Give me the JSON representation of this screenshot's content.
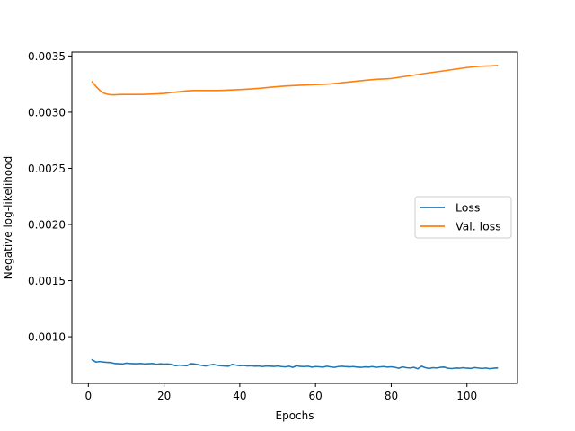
{
  "chart_data": {
    "type": "line",
    "title": "",
    "xlabel": "Epochs",
    "ylabel": "Negative log-likelihood",
    "xlim": [
      -4.35,
      113.35
    ],
    "ylim": [
      0.000585,
      0.003535
    ],
    "xticks": [
      0,
      20,
      40,
      60,
      80,
      100
    ],
    "yticks": [
      0.001,
      0.0015,
      0.002,
      0.0025,
      0.003,
      0.0035
    ],
    "ytick_labels": [
      "0.0010",
      "0.0015",
      "0.0020",
      "0.0025",
      "0.0030",
      "0.0035"
    ],
    "grid": false,
    "legend_position": "center-right",
    "series": [
      {
        "name": "Loss",
        "color": "#1f77b4",
        "x": [
          1,
          2,
          3,
          4,
          5,
          6,
          7,
          8,
          9,
          10,
          11,
          12,
          13,
          14,
          15,
          16,
          17,
          18,
          19,
          20,
          21,
          22,
          23,
          24,
          25,
          26,
          27,
          28,
          29,
          30,
          31,
          32,
          33,
          34,
          35,
          36,
          37,
          38,
          39,
          40,
          41,
          42,
          43,
          44,
          45,
          46,
          47,
          48,
          49,
          50,
          51,
          52,
          53,
          54,
          55,
          56,
          57,
          58,
          59,
          60,
          61,
          62,
          63,
          64,
          65,
          66,
          67,
          68,
          69,
          70,
          71,
          72,
          73,
          74,
          75,
          76,
          77,
          78,
          79,
          80,
          81,
          82,
          83,
          84,
          85,
          86,
          87,
          88,
          89,
          90,
          91,
          92,
          93,
          94,
          95,
          96,
          97,
          98,
          99,
          100,
          101,
          102,
          103,
          104,
          105,
          106,
          107,
          108
        ],
        "y": [
          0.000795,
          0.000775,
          0.00078,
          0.000775,
          0.000772,
          0.00077,
          0.000762,
          0.00076,
          0.000758,
          0.000765,
          0.000762,
          0.00076,
          0.00076,
          0.000762,
          0.000758,
          0.00076,
          0.000762,
          0.000755,
          0.00076,
          0.000757,
          0.000758,
          0.000755,
          0.000742,
          0.000748,
          0.000745,
          0.000742,
          0.00076,
          0.000758,
          0.000752,
          0.000745,
          0.00074,
          0.000748,
          0.000755,
          0.000747,
          0.000742,
          0.00074,
          0.000738,
          0.000755,
          0.000748,
          0.000742,
          0.000745,
          0.00074,
          0.000742,
          0.000738,
          0.00074,
          0.000735,
          0.00074,
          0.000738,
          0.000736,
          0.00074,
          0.000735,
          0.000732,
          0.000738,
          0.000728,
          0.000742,
          0.000736,
          0.000735,
          0.000738,
          0.00073,
          0.000735,
          0.000733,
          0.00073,
          0.000738,
          0.000732,
          0.000728,
          0.000735,
          0.000738,
          0.000734,
          0.000732,
          0.000735,
          0.00073,
          0.000728,
          0.000732,
          0.00073,
          0.000735,
          0.000728,
          0.000732,
          0.000735,
          0.00073,
          0.000733,
          0.000728,
          0.00072,
          0.000732,
          0.000725,
          0.000722,
          0.000728,
          0.000715,
          0.000738,
          0.000725,
          0.000718,
          0.000725,
          0.000722,
          0.000728,
          0.00073,
          0.00072,
          0.000717,
          0.000722,
          0.00072,
          0.000725,
          0.00072,
          0.000718,
          0.000726,
          0.000722,
          0.000718,
          0.000722,
          0.000716,
          0.00072,
          0.000722
        ]
      },
      {
        "name": "Val. loss",
        "color": "#ff7f0e",
        "x": [
          1,
          2,
          3,
          4,
          5,
          6,
          7,
          8,
          9,
          10,
          12,
          14,
          16,
          18,
          20,
          22,
          24,
          26,
          28,
          30,
          32,
          34,
          36,
          38,
          40,
          42,
          44,
          46,
          48,
          50,
          52,
          54,
          56,
          58,
          60,
          62,
          64,
          66,
          68,
          70,
          72,
          74,
          76,
          78,
          80,
          82,
          84,
          86,
          88,
          90,
          92,
          94,
          96,
          98,
          100,
          102,
          104,
          106,
          108
        ],
        "y": [
          0.00327,
          0.00323,
          0.003195,
          0.00317,
          0.00316,
          0.003155,
          0.003155,
          0.003157,
          0.003158,
          0.003158,
          0.003158,
          0.003158,
          0.00316,
          0.003163,
          0.003167,
          0.003175,
          0.003182,
          0.00319,
          0.003193,
          0.003193,
          0.003193,
          0.003193,
          0.003195,
          0.003198,
          0.003201,
          0.003205,
          0.00321,
          0.003215,
          0.003222,
          0.003228,
          0.003233,
          0.003237,
          0.00324,
          0.003243,
          0.003246,
          0.003248,
          0.003252,
          0.003258,
          0.003266,
          0.003273,
          0.00328,
          0.003287,
          0.003293,
          0.003296,
          0.0033,
          0.00331,
          0.00332,
          0.00333,
          0.00334,
          0.00335,
          0.003359,
          0.003368,
          0.003378,
          0.003388,
          0.003397,
          0.003405,
          0.00341,
          0.003412,
          0.003415
        ]
      }
    ]
  }
}
